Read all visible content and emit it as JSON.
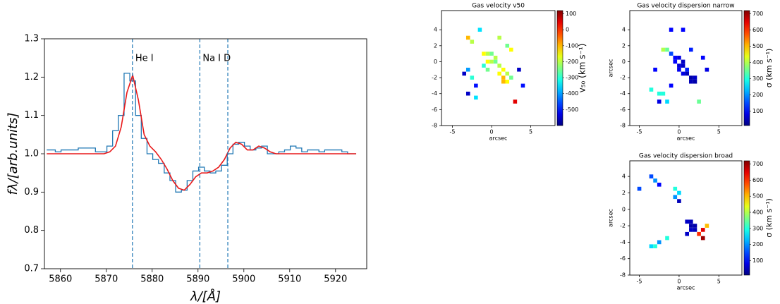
{
  "chart_data": [
    {
      "type": "line",
      "xlabel": "λ/[Å]",
      "ylabel": "fλ/[arb.units]",
      "xlim": [
        5856.5,
        5926.8
      ],
      "ylim": [
        0.7,
        1.3
      ],
      "xticks": [
        5860,
        5870,
        5880,
        5890,
        5900,
        5910,
        5920
      ],
      "yticks": [
        0.7,
        0.8,
        0.9,
        {
          "value": 1,
          "label": "1.0"
        },
        1.1,
        1.2,
        1.3
      ],
      "x": [
        5857,
        5858.25,
        5859.5,
        5860.75,
        5862,
        5863.25,
        5864.5,
        5865.75,
        5867,
        5868.25,
        5869.5,
        5870.75,
        5872,
        5873.25,
        5874.5,
        5875.75,
        5877,
        5878.25,
        5879.5,
        5880.75,
        5882,
        5883.25,
        5884.5,
        5885.75,
        5887,
        5888.25,
        5889.5,
        5890.75,
        5892,
        5893.25,
        5894.5,
        5895.75,
        5897,
        5898.25,
        5899.5,
        5900.75,
        5902,
        5903.25,
        5904.5,
        5905.75,
        5907,
        5908.25,
        5909.5,
        5910.75,
        5912,
        5913.25,
        5914.5,
        5915.75,
        5917,
        5918.25,
        5919.5,
        5920.75,
        5922,
        5923.25,
        5924.5
      ],
      "series": [
        {
          "color": "#1f77b4",
          "drawstyle": "steps-mid",
          "values": [
            1.01,
            1.01,
            1.005,
            1.01,
            1.01,
            1.01,
            1.015,
            1.015,
            1.015,
            1.005,
            1.005,
            1.02,
            1.06,
            1.1,
            1.21,
            1.19,
            1.1,
            1.04,
            1.0,
            0.985,
            0.975,
            0.95,
            0.93,
            0.9,
            0.905,
            0.93,
            0.955,
            0.965,
            0.955,
            0.95,
            0.955,
            0.97,
            1.0,
            1.025,
            1.03,
            1.02,
            1.01,
            1.015,
            1.02,
            1.0,
            1.0,
            1.005,
            1.01,
            1.02,
            1.015,
            1.005,
            1.01,
            1.01,
            1.005,
            1.01,
            1.01,
            1.01,
            1.005,
            1.0,
            1.0
          ]
        },
        {
          "color": "#e8191a",
          "drawstyle": "default",
          "values": [
            1.0,
            1.0,
            1.0,
            1.0,
            1.0,
            1.0,
            1.0,
            1.0,
            1.0,
            1.0,
            1.0,
            1.005,
            1.02,
            1.07,
            1.16,
            1.205,
            1.14,
            1.05,
            1.02,
            1.005,
            0.985,
            0.96,
            0.93,
            0.91,
            0.905,
            0.92,
            0.94,
            0.95,
            0.95,
            0.955,
            0.965,
            0.985,
            1.015,
            1.03,
            1.025,
            1.01,
            1.01,
            1.02,
            1.015,
            1.005,
            1.0,
            1.0,
            1.0,
            1.0,
            1.0,
            1.0,
            1.0,
            1.0,
            1.0,
            1.0,
            1.0,
            1.0,
            1.0,
            1.0,
            1.0
          ]
        }
      ],
      "vlines": [
        5875.7,
        5890.4,
        5896.5
      ],
      "vline_color": "#1f77b4",
      "annotations": [
        "He I",
        "Na I D"
      ]
    },
    {
      "type": "pixelmap",
      "title": "Gas velocity v50",
      "xlabel": "arcsec",
      "clabel": "v₅₀ (km s⁻¹)",
      "colormap": "jet",
      "xlim": [
        -6.4,
        8.1
      ],
      "ylim": [
        -8,
        6.4
      ],
      "xticks": [
        -5,
        0,
        5
      ],
      "yticks": [
        -8,
        -6,
        -4,
        -2,
        0,
        2,
        4
      ],
      "clim": [
        -600,
        120
      ],
      "cticks": [
        -500,
        -400,
        -300,
        -200,
        -100,
        0,
        100
      ],
      "x": [
        -3,
        -2.5,
        -1,
        -0.5,
        0,
        0.5,
        -0.5,
        0,
        0.5,
        1,
        1.5,
        -1,
        -0.5,
        1,
        1.5,
        2,
        2.5,
        1.5,
        2,
        -3.5,
        -3,
        -2.5,
        -2,
        -3,
        3.5,
        4,
        -1.5,
        1,
        2,
        2.5,
        -2,
        3
      ],
      "y": [
        3,
        2.5,
        1,
        1,
        1,
        0.5,
        0,
        0,
        0,
        -0.5,
        -1,
        -0.5,
        -1,
        -1.5,
        -2,
        -1.5,
        -2,
        -2.5,
        -2.5,
        -1.5,
        -1,
        -2,
        -3,
        -4,
        -1,
        -3,
        4,
        3,
        2,
        1.5,
        -4.5,
        -5
      ],
      "values": [
        -100,
        -200,
        -150,
        -200,
        -250,
        -200,
        -150,
        -200,
        -250,
        -200,
        -150,
        -300,
        -250,
        -150,
        -100,
        -200,
        -250,
        -100,
        -150,
        -550,
        -400,
        -300,
        -500,
        -550,
        -550,
        -500,
        -350,
        -200,
        -250,
        -150,
        -350,
        50
      ]
    },
    {
      "type": "pixelmap",
      "title": "Gas velocity dispersion narrow",
      "xlabel": "arcsec",
      "ylabel": "arcsec",
      "clabel": "σ (km s⁻¹)",
      "colormap": "jet",
      "xlim": [
        -6.2,
        7.9
      ],
      "ylim": [
        -8,
        6.4
      ],
      "xticks": [
        -5,
        0,
        5
      ],
      "yticks": [
        -8,
        -6,
        -4,
        -2,
        0,
        2,
        4
      ],
      "clim": [
        10,
        720
      ],
      "cticks": [
        100,
        200,
        300,
        400,
        500,
        600,
        700
      ],
      "x": [
        -1,
        -0.5,
        0,
        0.5,
        -0.5,
        0,
        0.5,
        1,
        0,
        0.5,
        1,
        1.5,
        2,
        1.5,
        2,
        1.5,
        -2,
        -1.5,
        -3,
        -2.5,
        -1,
        0.5,
        -2.5,
        3,
        3.5,
        -3.5,
        -2,
        -1.5,
        2.5,
        -1
      ],
      "y": [
        1,
        0.5,
        0.5,
        0,
        0,
        -0.5,
        -0.5,
        -1,
        -1,
        -1.5,
        -1.5,
        -2,
        -2,
        -2.5,
        -2.5,
        1.5,
        1.5,
        1.5,
        -1,
        -4,
        -3,
        4,
        -5,
        0.5,
        -1,
        -3.5,
        -4,
        -5,
        -5,
        4
      ],
      "values": [
        150,
        100,
        80,
        60,
        100,
        70,
        60,
        120,
        90,
        80,
        50,
        40,
        60,
        50,
        40,
        120,
        400,
        350,
        100,
        300,
        100,
        100,
        80,
        100,
        80,
        300,
        300,
        250,
        350,
        100
      ]
    },
    {
      "type": "pixelmap",
      "title": "Gas velocity dispersion broad",
      "xlabel": "arcsec",
      "ylabel": "arcsec",
      "clabel": "σ (km s⁻¹)",
      "colormap": "jet",
      "xlim": [
        -6.2,
        7.9
      ],
      "ylim": [
        -8,
        5.9
      ],
      "xticks": [
        -5,
        0,
        5
      ],
      "yticks": [
        -8,
        -6,
        -4,
        -2,
        0,
        2,
        4
      ],
      "clim": [
        10,
        720
      ],
      "cticks": [
        100,
        200,
        300,
        400,
        500,
        600,
        700
      ],
      "x": [
        -3.5,
        -3,
        -2.5,
        -0.5,
        0,
        -0.5,
        0,
        -5,
        1,
        1.5,
        2,
        1.5,
        2,
        1.5,
        2.5,
        3,
        3.5,
        3,
        -3.5,
        -3,
        -2.5,
        -1.5,
        1
      ],
      "y": [
        4,
        3.5,
        3,
        2.5,
        2,
        1.5,
        1,
        2.5,
        -1.5,
        -1.5,
        -2,
        -2.5,
        -2.5,
        -2,
        -3,
        -2.5,
        -2,
        -3.5,
        -4.5,
        -4.5,
        -4,
        -3.5,
        -3
      ],
      "values": [
        150,
        200,
        100,
        300,
        250,
        200,
        50,
        150,
        60,
        50,
        40,
        60,
        50,
        40,
        600,
        650,
        500,
        700,
        250,
        300,
        200,
        300,
        60
      ]
    }
  ]
}
